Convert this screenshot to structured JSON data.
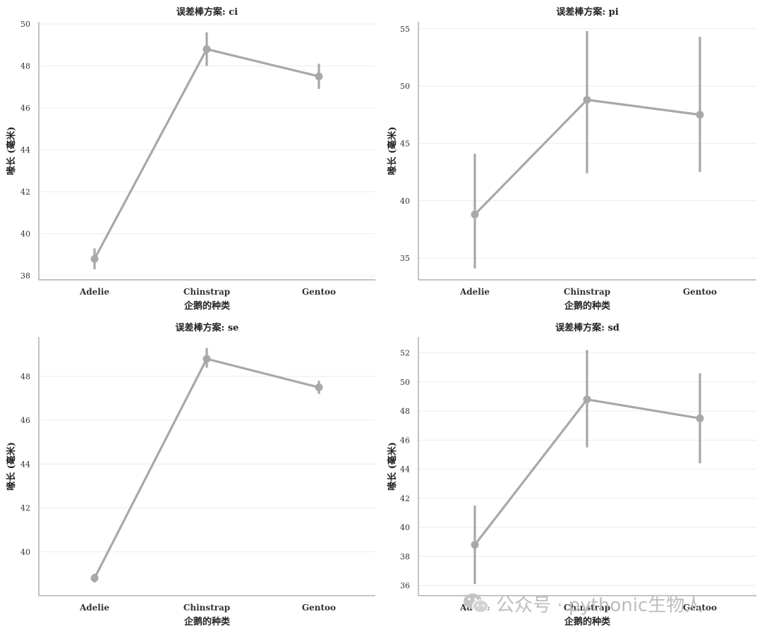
{
  "chart_data": [
    {
      "type": "line",
      "title": "误差棒方案: ci",
      "xlabel": "企鹅的种类",
      "ylabel": "喙长 (毫米)",
      "categories": [
        "Adelie",
        "Chinstrap",
        "Gentoo"
      ],
      "values": [
        38.8,
        48.8,
        47.5
      ],
      "err_low": [
        38.3,
        48.0,
        46.9
      ],
      "err_high": [
        39.3,
        49.6,
        48.1
      ],
      "ylim": [
        37.8,
        50.1
      ],
      "yticks": [
        38,
        40,
        42,
        44,
        46,
        48,
        50
      ],
      "color": "#a8a8a8",
      "grid": true
    },
    {
      "type": "line",
      "title": "误差棒方案: pi",
      "xlabel": "企鹅的种类",
      "ylabel": "喙长 (毫米)",
      "categories": [
        "Adelie",
        "Chinstrap",
        "Gentoo"
      ],
      "values": [
        38.8,
        48.8,
        47.5
      ],
      "err_low": [
        34.1,
        42.4,
        42.5
      ],
      "err_high": [
        44.1,
        54.8,
        54.3
      ],
      "ylim": [
        33.1,
        55.6
      ],
      "yticks": [
        35,
        40,
        45,
        50,
        55
      ],
      "color": "#a8a8a8",
      "grid": true
    },
    {
      "type": "line",
      "title": "误差棒方案: se",
      "xlabel": "企鹅的种类",
      "ylabel": "喙长 (毫米)",
      "categories": [
        "Adelie",
        "Chinstrap",
        "Gentoo"
      ],
      "values": [
        38.8,
        48.8,
        47.5
      ],
      "err_low": [
        38.6,
        48.4,
        47.2
      ],
      "err_high": [
        39.0,
        49.3,
        47.8
      ],
      "ylim": [
        38.0,
        49.8
      ],
      "yticks": [
        40,
        42,
        44,
        46,
        48
      ],
      "color": "#a8a8a8",
      "grid": true
    },
    {
      "type": "line",
      "title": "误差棒方案: sd",
      "xlabel": "企鹅的种类",
      "ylabel": "喙长 (毫米)",
      "categories": [
        "Adelie",
        "Chinstrap",
        "Gentoo"
      ],
      "values": [
        38.8,
        48.8,
        47.5
      ],
      "err_low": [
        36.1,
        45.5,
        44.4
      ],
      "err_high": [
        41.5,
        52.2,
        50.6
      ],
      "ylim": [
        35.3,
        53.1
      ],
      "yticks": [
        36,
        38,
        40,
        42,
        44,
        46,
        48,
        50,
        52
      ],
      "color": "#a8a8a8",
      "grid": true
    }
  ],
  "watermark": "公众号 · pythonic生物人"
}
